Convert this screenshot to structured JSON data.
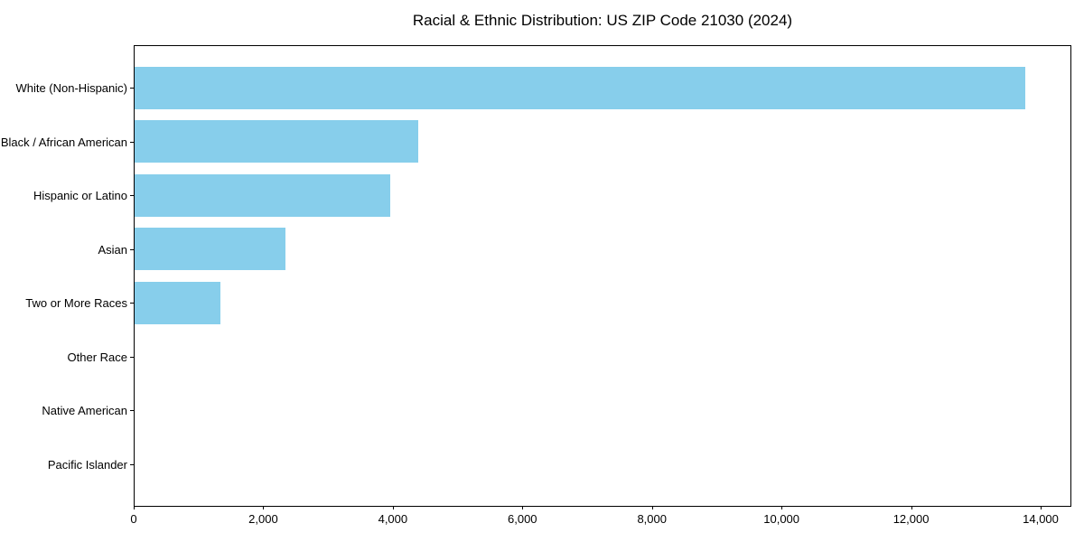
{
  "title": "Racial & Ethnic Distribution: US ZIP Code 21030 (2024)",
  "colors": {
    "bar": "#87CEEB",
    "axis": "#000000",
    "background": "#FFFFFF",
    "text": "#000000"
  },
  "chart_data": {
    "type": "bar",
    "orientation": "horizontal",
    "title": "Racial & Ethnic Distribution: US ZIP Code 21030 (2024)",
    "categories": [
      "White (Non-Hispanic)",
      "Black / African American",
      "Hispanic or Latino",
      "Asian",
      "Two or More Races",
      "Other Race",
      "Native American",
      "Pacific Islander"
    ],
    "values": [
      13760,
      4380,
      3950,
      2330,
      1320,
      0,
      0,
      0
    ],
    "xlabel": "",
    "ylabel": "",
    "xlim": [
      0,
      14460
    ],
    "x_ticks": [
      0,
      2000,
      4000,
      6000,
      8000,
      10000,
      12000,
      14000
    ],
    "x_tick_labels": [
      "0",
      "2,000",
      "4,000",
      "6,000",
      "8,000",
      "10,000",
      "12,000",
      "14,000"
    ],
    "grid": false,
    "legend": "none",
    "bar_color": "#87CEEB"
  }
}
